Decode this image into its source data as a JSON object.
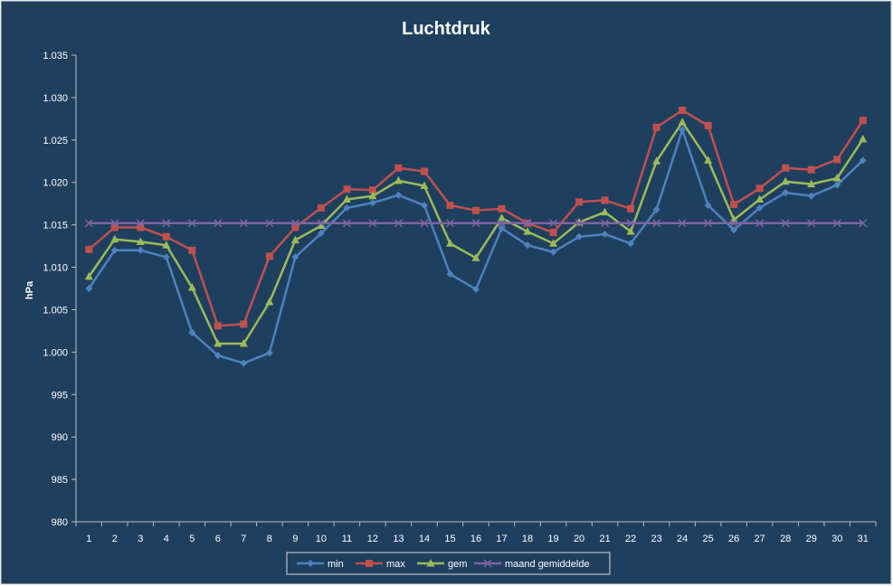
{
  "chart_data": {
    "type": "line",
    "title": "Luchtdruk",
    "xlabel": "",
    "ylabel": "hPa",
    "categories": [
      "1",
      "2",
      "3",
      "4",
      "5",
      "6",
      "7",
      "8",
      "9",
      "10",
      "11",
      "12",
      "13",
      "14",
      "15",
      "16",
      "17",
      "18",
      "19",
      "20",
      "21",
      "22",
      "23",
      "24",
      "25",
      "26",
      "27",
      "28",
      "29",
      "30",
      "31"
    ],
    "y_ticks": [
      "980",
      "985",
      "990",
      "995",
      "1.000",
      "1.005",
      "1.010",
      "1.015",
      "1.020",
      "1.025",
      "1.030",
      "1.035"
    ],
    "ylim": [
      980,
      1035
    ],
    "grid": false,
    "legend_position": "bottom",
    "series": [
      {
        "name": "min",
        "color": "#4f81bd",
        "marker": "diamond",
        "values": [
          1007.5,
          1012.0,
          1012.0,
          1011.2,
          1002.3,
          999.6,
          998.7,
          999.9,
          1011.2,
          1014.0,
          1017.0,
          1017.6,
          1018.5,
          1017.3,
          1009.2,
          1007.4,
          1014.6,
          1012.6,
          1011.8,
          1013.6,
          1013.9,
          1012.8,
          1016.8,
          1026.2,
          1017.3,
          1014.4,
          1017.0,
          1018.8,
          1018.4,
          1019.7,
          1022.6
        ]
      },
      {
        "name": "max",
        "color": "#c0504d",
        "marker": "square",
        "values": [
          1012.1,
          1014.7,
          1014.7,
          1013.6,
          1012.0,
          1003.1,
          1003.3,
          1011.3,
          1014.7,
          1017.0,
          1019.2,
          1019.1,
          1021.7,
          1021.3,
          1017.3,
          1016.7,
          1016.9,
          1015.2,
          1014.1,
          1017.7,
          1017.9,
          1016.9,
          1026.5,
          1028.5,
          1026.7,
          1017.4,
          1019.3,
          1021.7,
          1021.5,
          1022.7,
          1027.3
        ]
      },
      {
        "name": "gem",
        "color": "#9bbb59",
        "marker": "triangle",
        "values": [
          1008.9,
          1013.3,
          1013.0,
          1012.6,
          1007.6,
          1001.0,
          1001.0,
          1005.9,
          1013.2,
          1014.9,
          1018.0,
          1018.4,
          1020.2,
          1019.6,
          1012.8,
          1011.1,
          1015.8,
          1014.2,
          1012.8,
          1015.3,
          1016.5,
          1014.2,
          1022.5,
          1027.1,
          1022.6,
          1015.6,
          1018.0,
          1020.1,
          1019.8,
          1020.5,
          1025.1
        ]
      },
      {
        "name": "maand gemiddelde",
        "color": "#8064a2",
        "marker": "x",
        "values": [
          1015.2,
          1015.2,
          1015.2,
          1015.2,
          1015.2,
          1015.2,
          1015.2,
          1015.2,
          1015.2,
          1015.2,
          1015.2,
          1015.2,
          1015.2,
          1015.2,
          1015.2,
          1015.2,
          1015.2,
          1015.2,
          1015.2,
          1015.2,
          1015.2,
          1015.2,
          1015.2,
          1015.2,
          1015.2,
          1015.2,
          1015.2,
          1015.2,
          1015.2,
          1015.2,
          1015.2
        ]
      }
    ],
    "colors": {
      "background": "#1f3f5f",
      "axis": "#bfbfbf",
      "text": "#ffffff",
      "border": "#d9d9d9"
    }
  }
}
